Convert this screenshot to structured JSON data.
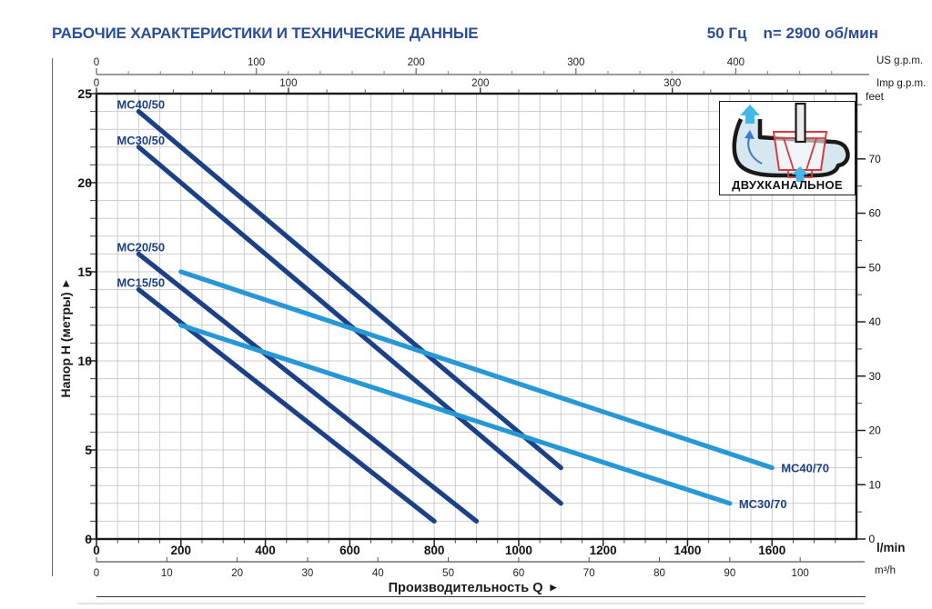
{
  "header": {
    "title": "РАБОЧИЕ ХАРАКТЕРИСТИКИ И ТЕХНИЧЕСКИЕ ДАННЫЕ",
    "frequency": "50 Гц",
    "speed": "n= 2900 об/мин"
  },
  "inset": {
    "label": "ДВУХКАНАЛЬНОЕ"
  },
  "axis_labels": {
    "y": "Напор H (метры)",
    "x": "Производительность Q",
    "arrow": "▶"
  },
  "chart_data": {
    "type": "line",
    "title": "Pump performance curves H(Q), 50 Hz, n=2900 rpm",
    "xlabel": "Производительность Q",
    "ylabel": "Напор H (метры)",
    "xlim_lmin": [
      0,
      1800
    ],
    "ylim_m": [
      0,
      25
    ],
    "grid": {
      "x_step_lmin": 50,
      "y_step_m": 1
    },
    "legend": "labels-on-curves",
    "axes": {
      "us_gpm": {
        "unit": "US g.p.m.",
        "majors": [
          0,
          100,
          200,
          300,
          400
        ],
        "minor_step": 20,
        "minor_max": 460
      },
      "imp_gpm": {
        "unit": "Imp g.p.m.",
        "majors": [
          0,
          100,
          200,
          300
        ],
        "minor_step": 20,
        "minor_max": 380
      },
      "lmin": {
        "unit": "l/min",
        "majors": [
          0,
          200,
          400,
          600,
          800,
          1000,
          1200,
          1400,
          1600
        ],
        "minor_step": 50,
        "minor_max": 1750
      },
      "m3h": {
        "unit": "m³/h",
        "majors": [
          0,
          10,
          20,
          30,
          40,
          50,
          60,
          70,
          80,
          90,
          100
        ]
      },
      "meters": {
        "unit": "метры",
        "majors": [
          0,
          5,
          10,
          15,
          20,
          25
        ],
        "minor_step": 1,
        "minor_max": 25
      },
      "feet": {
        "unit": "feet",
        "majors": [
          0,
          10,
          20,
          30,
          40,
          50,
          60,
          70
        ],
        "minor_step": 5,
        "minor_max": 80
      }
    },
    "series": [
      {
        "name": "MC40/50",
        "color": "#1c4086",
        "points_lmin_m": [
          [
            100,
            24
          ],
          [
            1100,
            4
          ]
        ],
        "label_anchor": "start"
      },
      {
        "name": "MC30/50",
        "color": "#1c4086",
        "points_lmin_m": [
          [
            100,
            22
          ],
          [
            1100,
            2
          ]
        ],
        "label_anchor": "start"
      },
      {
        "name": "MC20/50",
        "color": "#1c4086",
        "points_lmin_m": [
          [
            100,
            16
          ],
          [
            900,
            1
          ]
        ],
        "label_anchor": "start"
      },
      {
        "name": "MC15/50",
        "color": "#1c4086",
        "points_lmin_m": [
          [
            100,
            14
          ],
          [
            800,
            1
          ]
        ],
        "label_anchor": "start"
      },
      {
        "name": "MC40/70",
        "color": "#2598d5",
        "points_lmin_m": [
          [
            200,
            15
          ],
          [
            1600,
            4
          ]
        ],
        "label_anchor": "end"
      },
      {
        "name": "MC30/70",
        "color": "#2598d5",
        "points_lmin_m": [
          [
            200,
            12
          ],
          [
            1500,
            2
          ]
        ],
        "label_anchor": "end"
      }
    ]
  },
  "colors": {
    "title": "#2a4d9b",
    "navy": "#1c4086",
    "light_blue": "#2598d5",
    "grid": "#cccccc",
    "axis_gray": "#9b9b9b",
    "ink": "#1a1a1a",
    "inset_red": "#d93a3c",
    "inset_cyan": "#45b8ea",
    "inset_water": "#d7e7f0",
    "inset_arrow_blue": "#3f78c5"
  }
}
